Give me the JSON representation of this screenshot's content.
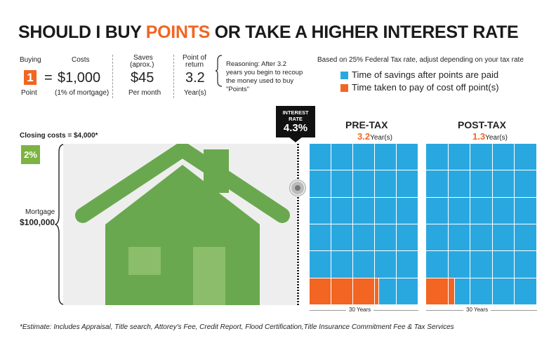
{
  "title": {
    "pre": "SHOULD I BUY ",
    "highlight": "POINTS",
    "post": " OR TAKE A HIGHER INTEREST RATE"
  },
  "buying": {
    "header": "Buying",
    "value": "1",
    "sub": "Point",
    "equals": "="
  },
  "costs": {
    "header": "Costs",
    "value": "$1,000",
    "sub": "(1% of mortgage)"
  },
  "saves": {
    "header_line1": "Saves",
    "header_line2": "(aprox.)",
    "value": "$45",
    "sub": "Per month"
  },
  "return": {
    "header_line1": "Point of",
    "header_line2": "return",
    "value": "3.2",
    "sub": "Year(s)"
  },
  "reasoning": "Reasoning: After 3.2 years you begin to recoup the money used to buy \"Points\"",
  "tax_note": "Based on 25% Federal Tax rate, adjust depending on your tax rate",
  "legend": [
    {
      "label": "Time of savings after points are paid",
      "color": "#29a8e0"
    },
    {
      "label": "Time taken to pay of cost off point(s)",
      "color": "#f26522"
    }
  ],
  "interest_rate": {
    "label_line1": "INTEREST",
    "label_line2": "RATE",
    "value": "4.3%"
  },
  "closing_costs": {
    "label": "Closing costs = ",
    "value": "$4,000*"
  },
  "closing_pct": "2%",
  "mortgage": {
    "label": "Mortgage",
    "value": "$100,000"
  },
  "panels": [
    {
      "title": "PRE-TAX",
      "value": "3.2",
      "unit": "Year(s)",
      "axis_label": "30 Years",
      "rows": 6,
      "cols": 5,
      "payback_years": 3.2,
      "total_years": 30
    },
    {
      "title": "POST-TAX",
      "value": "1.3",
      "unit": "Year(s)",
      "axis_label": "30 Years",
      "rows": 6,
      "cols": 5,
      "payback_years": 1.3,
      "total_years": 30
    }
  ],
  "colors": {
    "accent": "#f26522",
    "blue": "#29a8e0",
    "green": "#6aa84f",
    "green_light": "#7cb342"
  },
  "footnote": "*Estimate: Includes Appraisal, Title search,  Attorey's Fee, Credit Report, Flood Certification,Title Insurance Commitment Fee & Tax Services"
}
